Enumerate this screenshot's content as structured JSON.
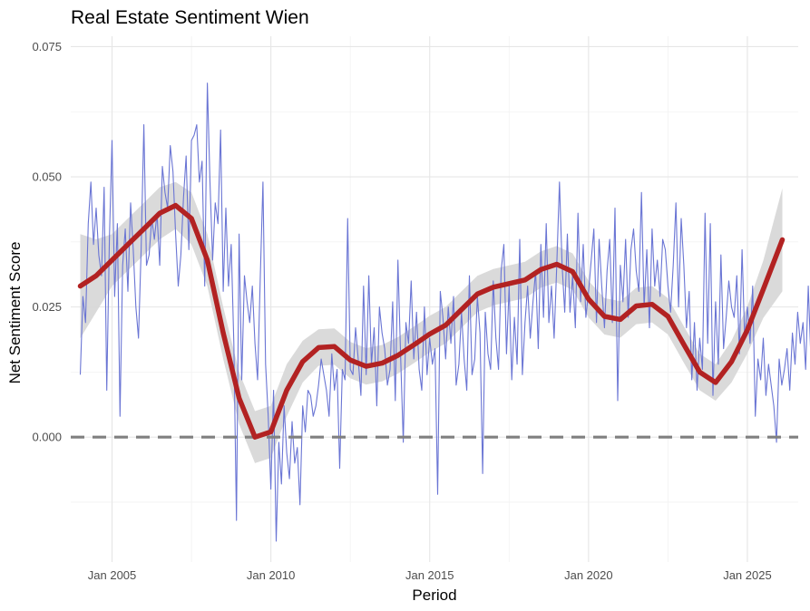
{
  "chart_data": {
    "type": "line",
    "title": "Real Estate Sentiment Wien",
    "xlabel": "Period",
    "ylabel": "Net Sentiment Score",
    "xlim": [
      2003.7,
      2026.6
    ],
    "ylim": [
      -0.024,
      0.077
    ],
    "x_ticks": [
      {
        "value": 2005,
        "label": "Jan 2005"
      },
      {
        "value": 2010,
        "label": "Jan 2010"
      },
      {
        "value": 2015,
        "label": "Jan 2015"
      },
      {
        "value": 2020,
        "label": "Jan 2020"
      },
      {
        "value": 2025,
        "label": "Jan 2025"
      }
    ],
    "y_ticks": [
      {
        "value": 0.0,
        "label": "0.000"
      },
      {
        "value": 0.025,
        "label": "0.025"
      },
      {
        "value": 0.05,
        "label": "0.050"
      },
      {
        "value": 0.075,
        "label": "0.075"
      }
    ],
    "reference_line": {
      "y": 0.0,
      "style": "dashed",
      "color": "#808080"
    },
    "colors": {
      "raw": "#6a75d4",
      "smooth": "#b22222",
      "band": "#d6d6d6"
    },
    "series": [
      {
        "name": "monthly net sentiment",
        "x_start": 2004.0,
        "step_months": 1,
        "values": [
          0.012,
          0.027,
          0.022,
          0.041,
          0.049,
          0.037,
          0.044,
          0.035,
          0.031,
          0.048,
          0.009,
          0.038,
          0.057,
          0.027,
          0.041,
          0.004,
          0.033,
          0.04,
          0.028,
          0.045,
          0.036,
          0.025,
          0.019,
          0.036,
          0.06,
          0.033,
          0.035,
          0.042,
          0.038,
          0.043,
          0.033,
          0.052,
          0.047,
          0.044,
          0.056,
          0.051,
          0.039,
          0.029,
          0.035,
          0.046,
          0.054,
          0.036,
          0.057,
          0.058,
          0.06,
          0.049,
          0.053,
          0.029,
          0.068,
          0.049,
          0.034,
          0.045,
          0.041,
          0.059,
          0.028,
          0.044,
          0.029,
          0.037,
          0.018,
          -0.016,
          0.039,
          0.011,
          0.031,
          0.026,
          0.022,
          0.029,
          0.018,
          0.011,
          0.031,
          0.049,
          0.014,
          0.004,
          -0.01,
          0.009,
          -0.02,
          -0.001,
          -0.009,
          0.006,
          -0.003,
          -0.008,
          0.003,
          -0.005,
          -0.002,
          -0.013,
          0.006,
          0.001,
          0.009,
          0.008,
          0.004,
          0.006,
          0.01,
          0.015,
          0.012,
          0.009,
          0.004,
          0.016,
          0.009,
          0.013,
          -0.006,
          0.013,
          0.011,
          0.042,
          0.013,
          0.012,
          0.021,
          0.015,
          0.008,
          0.029,
          0.012,
          0.031,
          0.014,
          0.021,
          0.006,
          0.025,
          0.02,
          0.017,
          0.01,
          0.013,
          0.026,
          0.007,
          0.034,
          0.016,
          -0.001,
          0.022,
          0.018,
          0.03,
          0.015,
          0.024,
          0.013,
          0.009,
          0.025,
          0.012,
          0.019,
          0.014,
          0.017,
          -0.011,
          0.028,
          0.023,
          0.015,
          0.025,
          0.018,
          0.027,
          0.01,
          0.014,
          0.024,
          0.015,
          0.009,
          0.031,
          0.012,
          0.015,
          0.027,
          0.02,
          -0.007,
          0.024,
          0.016,
          0.013,
          0.03,
          0.019,
          0.013,
          0.032,
          0.037,
          0.016,
          0.029,
          0.011,
          0.023,
          0.014,
          0.038,
          0.012,
          0.022,
          0.029,
          0.019,
          0.026,
          0.032,
          0.017,
          0.037,
          0.023,
          0.041,
          0.022,
          0.029,
          0.019,
          0.033,
          0.049,
          0.033,
          0.024,
          0.039,
          0.024,
          0.031,
          0.021,
          0.043,
          0.026,
          0.037,
          0.023,
          0.028,
          0.034,
          0.04,
          0.022,
          0.038,
          0.029,
          0.021,
          0.032,
          0.038,
          0.022,
          0.044,
          0.007,
          0.033,
          0.026,
          0.038,
          0.023,
          0.036,
          0.04,
          0.032,
          0.028,
          0.047,
          0.025,
          0.036,
          0.021,
          0.04,
          0.029,
          0.034,
          0.027,
          0.038,
          0.036,
          0.029,
          0.024,
          0.033,
          0.045,
          0.025,
          0.042,
          0.033,
          0.021,
          0.028,
          0.011,
          0.022,
          0.009,
          0.019,
          0.013,
          0.043,
          0.018,
          0.041,
          0.008,
          0.026,
          0.014,
          0.035,
          0.017,
          0.023,
          0.03,
          0.025,
          0.023,
          0.031,
          0.016,
          0.036,
          0.019,
          0.025,
          0.018,
          0.029,
          0.004,
          0.015,
          0.011,
          0.019,
          0.008,
          0.014,
          0.01,
          0.006,
          -0.001,
          0.015,
          0.01,
          0.013,
          0.017,
          0.009,
          0.02,
          0.014,
          0.024,
          0.018,
          0.022,
          0.013,
          0.029,
          0.015,
          0.022,
          0.001,
          0.048,
          0.04,
          0.056,
          0.027,
          0.015,
          -0.018,
          0.034,
          0.03,
          0.018,
          0.041,
          0.037,
          0.036,
          0.072,
          0.038,
          0.04,
          0.061,
          -0.001,
          0.018
        ]
      },
      {
        "name": "smoothed trend",
        "x": [
          2004.0,
          2004.5,
          2005.0,
          2005.5,
          2006.0,
          2006.5,
          2007.0,
          2007.5,
          2008.0,
          2008.5,
          2009.0,
          2009.5,
          2010.0,
          2010.5,
          2011.0,
          2011.5,
          2012.0,
          2012.5,
          2013.0,
          2013.5,
          2014.0,
          2014.5,
          2015.0,
          2015.5,
          2016.0,
          2016.5,
          2017.0,
          2017.5,
          2018.0,
          2018.5,
          2019.0,
          2019.5,
          2020.0,
          2020.5,
          2021.0,
          2021.5,
          2022.0,
          2022.5,
          2023.0,
          2023.5,
          2024.0,
          2024.5,
          2025.0,
          2025.5,
          2026.1
        ],
        "values": [
          0.029,
          0.031,
          0.034,
          0.037,
          0.04,
          0.043,
          0.0445,
          0.042,
          0.034,
          0.02,
          0.0075,
          0.0,
          0.001,
          0.009,
          0.0145,
          0.0172,
          0.0174,
          0.0148,
          0.0136,
          0.0142,
          0.0157,
          0.0177,
          0.0198,
          0.0215,
          0.0245,
          0.0275,
          0.0288,
          0.0295,
          0.0302,
          0.0322,
          0.0332,
          0.0318,
          0.0265,
          0.0232,
          0.0226,
          0.0252,
          0.0255,
          0.0232,
          0.0178,
          0.0125,
          0.0105,
          0.0145,
          0.0206,
          0.0284,
          0.0379
        ],
        "lower": [
          0.019,
          0.024,
          0.029,
          0.032,
          0.035,
          0.038,
          0.04,
          0.037,
          0.029,
          0.015,
          0.0025,
          -0.005,
          -0.004,
          0.004,
          0.0105,
          0.0137,
          0.0139,
          0.0113,
          0.0101,
          0.0107,
          0.0122,
          0.0142,
          0.0163,
          0.018,
          0.021,
          0.024,
          0.0253,
          0.026,
          0.0267,
          0.0287,
          0.0297,
          0.0283,
          0.023,
          0.0197,
          0.0191,
          0.0217,
          0.022,
          0.0197,
          0.0143,
          0.009,
          0.007,
          0.0105,
          0.0161,
          0.0229,
          0.028
        ],
        "upper": [
          0.039,
          0.038,
          0.039,
          0.042,
          0.045,
          0.048,
          0.049,
          0.047,
          0.039,
          0.025,
          0.0125,
          0.005,
          0.006,
          0.014,
          0.0185,
          0.0207,
          0.0209,
          0.0183,
          0.0171,
          0.0177,
          0.0192,
          0.0212,
          0.0233,
          0.025,
          0.028,
          0.031,
          0.0323,
          0.033,
          0.0337,
          0.0357,
          0.0367,
          0.0353,
          0.03,
          0.0267,
          0.0261,
          0.0287,
          0.029,
          0.0267,
          0.0213,
          0.016,
          0.014,
          0.0185,
          0.0251,
          0.0339,
          0.0478
        ]
      }
    ]
  }
}
